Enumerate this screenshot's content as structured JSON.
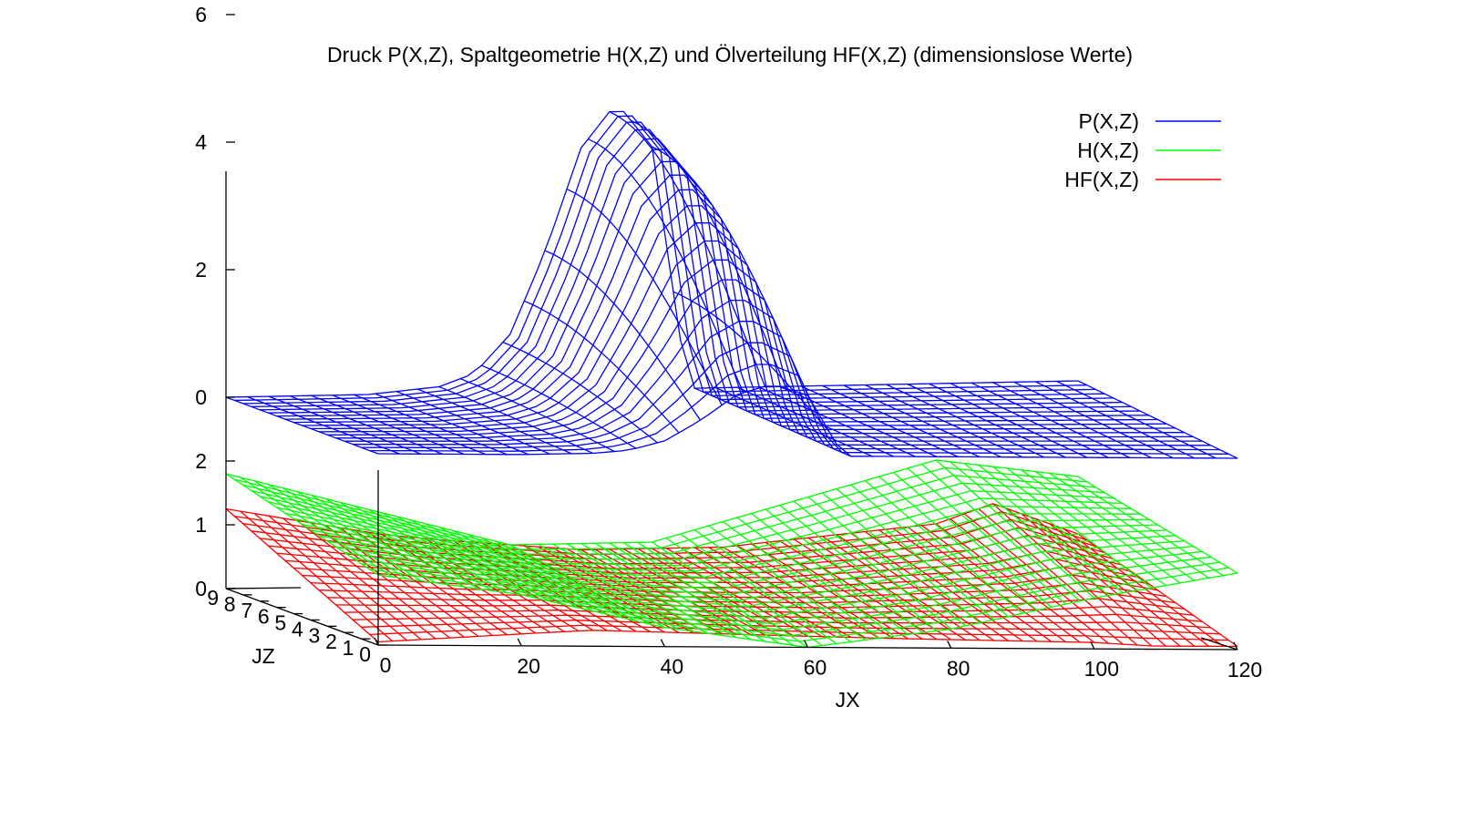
{
  "chart_data": {
    "type": "surface",
    "title": "Druck P(X,Z), Spaltgeometrie H(X,Z) und Ölverteilung HF(X,Z) (dimensionslose Werte)",
    "xlabel": "JX",
    "zlabel": "JZ",
    "x_ticks": [
      "0",
      "20",
      "40",
      "60",
      "80",
      "100",
      "120"
    ],
    "z_ticks": [
      "0",
      "1",
      "2",
      "3",
      "4",
      "5",
      "6",
      "7",
      "8",
      "9"
    ],
    "xlim": [
      0,
      120
    ],
    "zlim": [
      0,
      9
    ],
    "upper_axis": {
      "ticks": [
        "0",
        "2",
        "4",
        "6"
      ],
      "ylim": [
        -2,
        7
      ]
    },
    "lower_axis": {
      "ticks": [
        "0",
        "1",
        "2"
      ],
      "ylim": [
        0,
        2
      ]
    },
    "legend_position": "top-right",
    "series": [
      {
        "name": "P(X,Z)",
        "color": "#0000ff",
        "x": [
          0,
          20,
          30,
          35,
          40,
          45,
          50,
          55,
          60,
          65,
          70,
          120
        ],
        "profile": [
          0,
          0,
          0.1,
          0.3,
          0.9,
          2.2,
          3.8,
          4.5,
          3.8,
          0,
          0,
          0
        ],
        "z_weight_at_z0": 0.25,
        "z_weight_at_z9": 1
      },
      {
        "name": "H(X,Z)",
        "color": "#00ff00",
        "x": [
          0,
          20,
          40,
          60,
          80,
          100,
          120
        ],
        "z0": [
          1.1,
          0.8,
          0.3,
          0.0,
          0.3,
          0.8,
          1.2
        ],
        "z9": [
          1.8,
          1.2,
          0.6,
          0.6,
          1.2,
          1.8,
          1.5
        ]
      },
      {
        "name": "HF(X,Z)",
        "color": "#ff0000",
        "x": [
          0,
          22,
          30,
          50,
          70,
          100,
          108,
          120
        ],
        "z0": [
          0.05,
          0.2,
          0.25,
          0.2,
          0.15,
          0.1,
          0.05,
          0.05
        ],
        "z9": [
          1.25,
          0.8,
          0.7,
          0.5,
          0.5,
          0.8,
          1.1,
          0.6
        ]
      }
    ]
  }
}
